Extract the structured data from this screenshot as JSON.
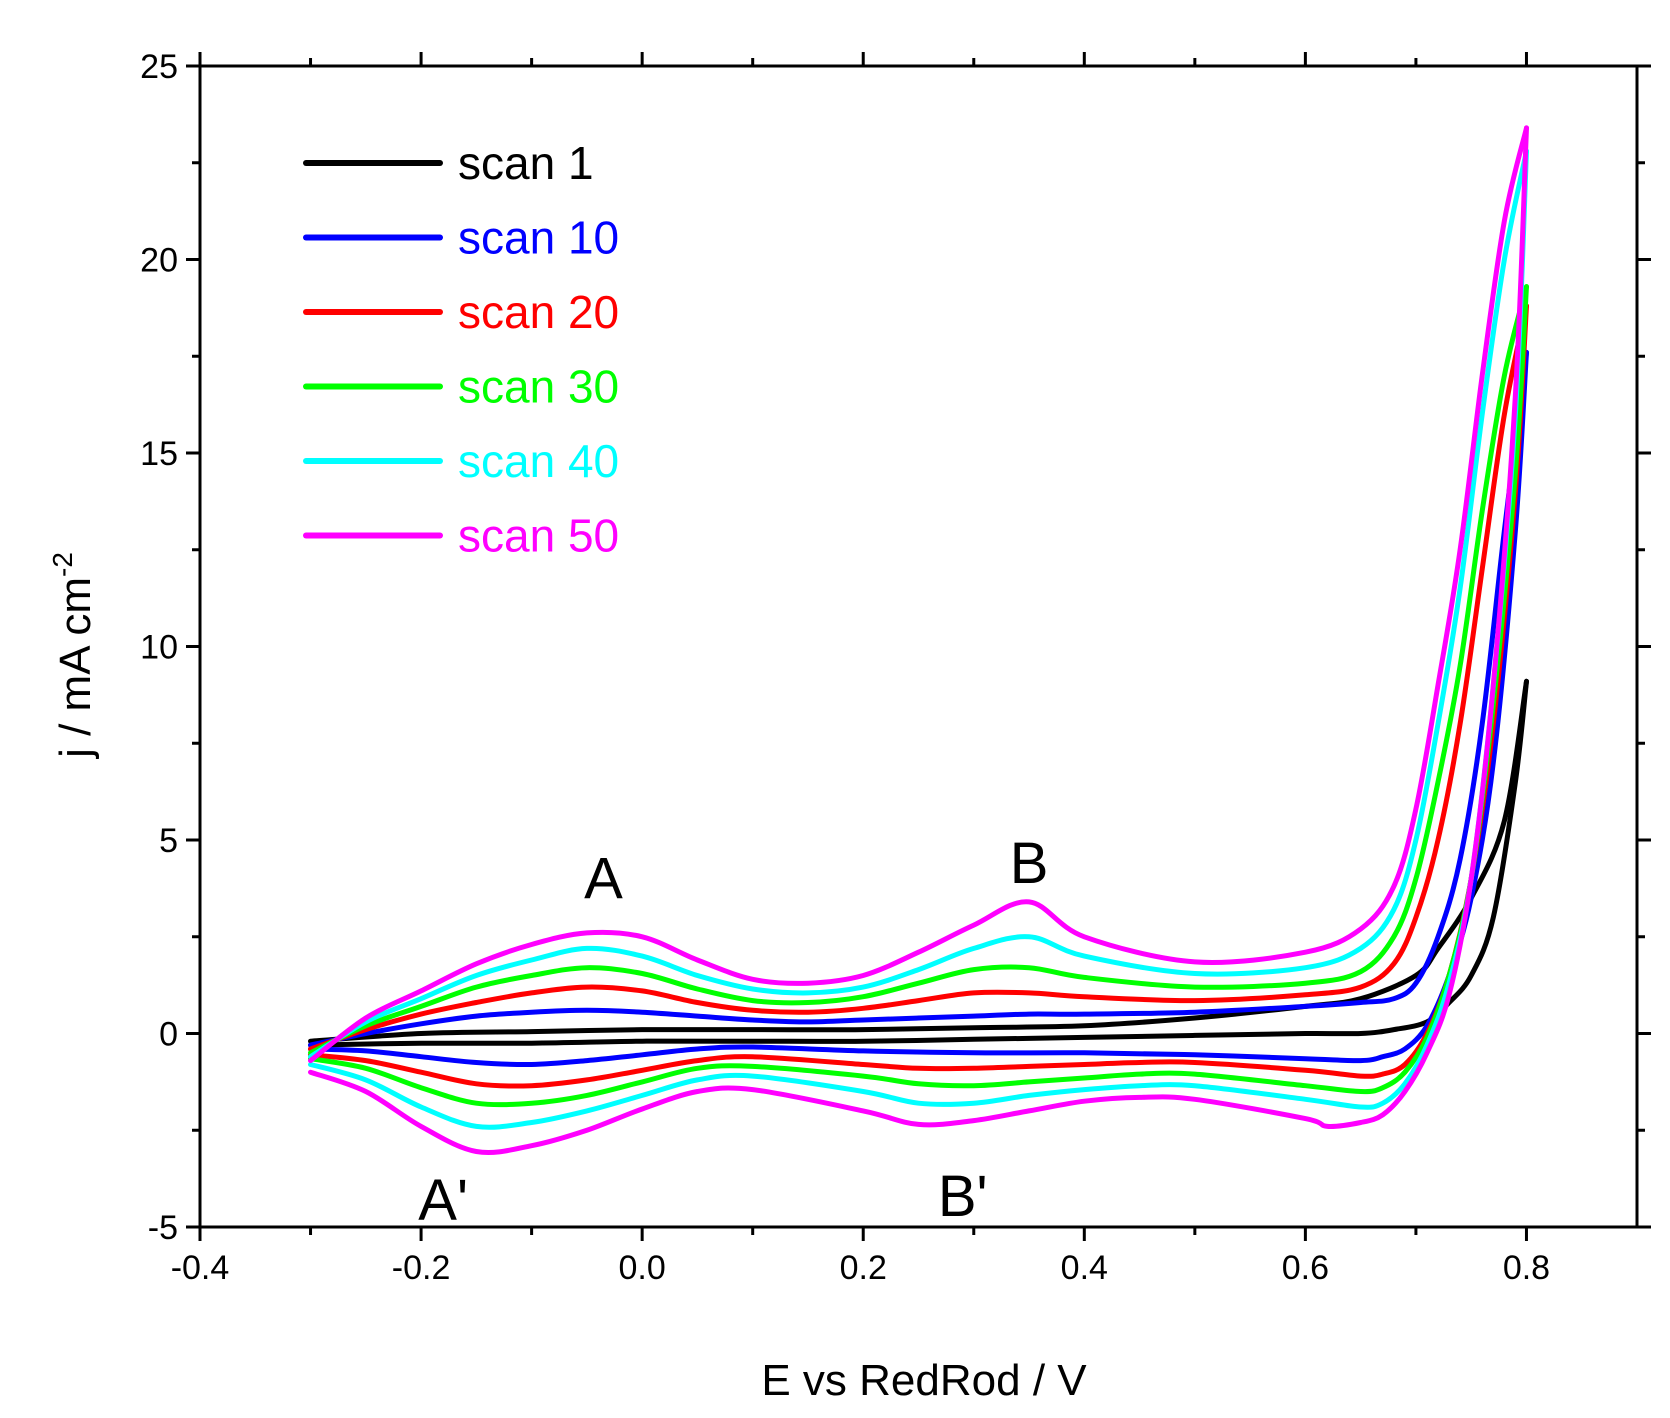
{
  "chart_data": {
    "type": "line",
    "title": "",
    "xlabel": "E vs RedRod / V",
    "ylabel_main": "j / mA cm",
    "ylabel_sup": "-2",
    "xlim": [
      -0.4,
      0.9
    ],
    "ylim": [
      -5,
      25
    ],
    "xticks": [
      -0.4,
      -0.2,
      0.0,
      0.2,
      0.4,
      0.6,
      0.8
    ],
    "xtick_labels": [
      "-0.4",
      "-0.2",
      "0.0",
      "0.2",
      "0.4",
      "0.6",
      "0.8"
    ],
    "yticks": [
      -5,
      0,
      5,
      10,
      15,
      20,
      25
    ],
    "ytick_labels": [
      "-5",
      "0",
      "5",
      "10",
      "15",
      "20",
      "25"
    ],
    "legend_position": "top-left",
    "annotations": [
      {
        "text": "A",
        "x": -0.035,
        "y": 4.0
      },
      {
        "text": "B",
        "x": 0.35,
        "y": 4.4
      },
      {
        "text": "A'",
        "x": -0.18,
        "y": -4.3
      },
      {
        "text": "B'",
        "x": 0.29,
        "y": -4.2
      }
    ],
    "series": [
      {
        "name": "scan 1",
        "color": "#000000",
        "forward": [
          [
            -0.3,
            -0.2
          ],
          [
            -0.2,
            0.0
          ],
          [
            -0.1,
            0.05
          ],
          [
            0.0,
            0.1
          ],
          [
            0.1,
            0.1
          ],
          [
            0.2,
            0.1
          ],
          [
            0.3,
            0.15
          ],
          [
            0.4,
            0.2
          ],
          [
            0.5,
            0.4
          ],
          [
            0.6,
            0.7
          ],
          [
            0.65,
            0.9
          ],
          [
            0.7,
            1.5
          ],
          [
            0.72,
            2.2
          ],
          [
            0.75,
            3.5
          ],
          [
            0.78,
            5.5
          ],
          [
            0.8,
            9.1
          ]
        ],
        "reverse": [
          [
            0.8,
            9.1
          ],
          [
            0.79,
            6.5
          ],
          [
            0.77,
            3.0
          ],
          [
            0.75,
            1.5
          ],
          [
            0.73,
            0.8
          ],
          [
            0.71,
            0.3
          ],
          [
            0.68,
            0.1
          ],
          [
            0.65,
            0.0
          ],
          [
            0.6,
            0.0
          ],
          [
            0.5,
            -0.05
          ],
          [
            0.4,
            -0.1
          ],
          [
            0.3,
            -0.15
          ],
          [
            0.2,
            -0.2
          ],
          [
            0.1,
            -0.2
          ],
          [
            0.0,
            -0.2
          ],
          [
            -0.1,
            -0.25
          ],
          [
            -0.2,
            -0.25
          ],
          [
            -0.3,
            -0.3
          ]
        ]
      },
      {
        "name": "scan 10",
        "color": "#0000ff",
        "forward": [
          [
            -0.3,
            -0.3
          ],
          [
            -0.25,
            0.0
          ],
          [
            -0.2,
            0.25
          ],
          [
            -0.15,
            0.45
          ],
          [
            -0.1,
            0.55
          ],
          [
            -0.05,
            0.6
          ],
          [
            0.0,
            0.55
          ],
          [
            0.05,
            0.45
          ],
          [
            0.1,
            0.35
          ],
          [
            0.15,
            0.3
          ],
          [
            0.2,
            0.35
          ],
          [
            0.25,
            0.4
          ],
          [
            0.3,
            0.45
          ],
          [
            0.35,
            0.5
          ],
          [
            0.4,
            0.5
          ],
          [
            0.5,
            0.55
          ],
          [
            0.6,
            0.7
          ],
          [
            0.65,
            0.8
          ],
          [
            0.68,
            0.9
          ],
          [
            0.7,
            1.3
          ],
          [
            0.72,
            2.5
          ],
          [
            0.74,
            4.5
          ],
          [
            0.76,
            8.0
          ],
          [
            0.78,
            13.0
          ],
          [
            0.8,
            17.6
          ]
        ],
        "reverse": [
          [
            0.8,
            17.6
          ],
          [
            0.79,
            13.0
          ],
          [
            0.77,
            7.0
          ],
          [
            0.75,
            3.5
          ],
          [
            0.73,
            1.5
          ],
          [
            0.71,
            0.2
          ],
          [
            0.69,
            -0.4
          ],
          [
            0.67,
            -0.6
          ],
          [
            0.65,
            -0.7
          ],
          [
            0.6,
            -0.65
          ],
          [
            0.5,
            -0.55
          ],
          [
            0.4,
            -0.5
          ],
          [
            0.3,
            -0.5
          ],
          [
            0.2,
            -0.45
          ],
          [
            0.1,
            -0.35
          ],
          [
            0.05,
            -0.4
          ],
          [
            0.0,
            -0.55
          ],
          [
            -0.05,
            -0.7
          ],
          [
            -0.1,
            -0.8
          ],
          [
            -0.15,
            -0.75
          ],
          [
            -0.2,
            -0.6
          ],
          [
            -0.25,
            -0.45
          ],
          [
            -0.3,
            -0.4
          ]
        ]
      },
      {
        "name": "scan 20",
        "color": "#ff0000",
        "forward": [
          [
            -0.3,
            -0.4
          ],
          [
            -0.25,
            0.1
          ],
          [
            -0.2,
            0.5
          ],
          [
            -0.15,
            0.8
          ],
          [
            -0.1,
            1.05
          ],
          [
            -0.05,
            1.2
          ],
          [
            0.0,
            1.1
          ],
          [
            0.05,
            0.8
          ],
          [
            0.1,
            0.6
          ],
          [
            0.15,
            0.55
          ],
          [
            0.2,
            0.65
          ],
          [
            0.25,
            0.85
          ],
          [
            0.3,
            1.05
          ],
          [
            0.35,
            1.05
          ],
          [
            0.4,
            0.95
          ],
          [
            0.5,
            0.85
          ],
          [
            0.6,
            1.0
          ],
          [
            0.65,
            1.2
          ],
          [
            0.68,
            1.8
          ],
          [
            0.7,
            3.0
          ],
          [
            0.72,
            5.0
          ],
          [
            0.74,
            8.0
          ],
          [
            0.76,
            12.0
          ],
          [
            0.78,
            16.0
          ],
          [
            0.8,
            18.8
          ]
        ],
        "reverse": [
          [
            0.8,
            18.8
          ],
          [
            0.79,
            14.0
          ],
          [
            0.77,
            8.0
          ],
          [
            0.75,
            4.0
          ],
          [
            0.73,
            1.5
          ],
          [
            0.71,
            0.0
          ],
          [
            0.69,
            -0.8
          ],
          [
            0.67,
            -1.05
          ],
          [
            0.65,
            -1.1
          ],
          [
            0.6,
            -0.95
          ],
          [
            0.5,
            -0.75
          ],
          [
            0.45,
            -0.75
          ],
          [
            0.4,
            -0.8
          ],
          [
            0.35,
            -0.85
          ],
          [
            0.3,
            -0.9
          ],
          [
            0.25,
            -0.9
          ],
          [
            0.2,
            -0.8
          ],
          [
            0.1,
            -0.6
          ],
          [
            0.05,
            -0.7
          ],
          [
            0.0,
            -0.95
          ],
          [
            -0.05,
            -1.2
          ],
          [
            -0.1,
            -1.35
          ],
          [
            -0.15,
            -1.3
          ],
          [
            -0.2,
            -1.0
          ],
          [
            -0.25,
            -0.7
          ],
          [
            -0.3,
            -0.55
          ]
        ]
      },
      {
        "name": "scan 30",
        "color": "#00ff00",
        "forward": [
          [
            -0.3,
            -0.5
          ],
          [
            -0.25,
            0.2
          ],
          [
            -0.2,
            0.7
          ],
          [
            -0.15,
            1.2
          ],
          [
            -0.1,
            1.5
          ],
          [
            -0.05,
            1.7
          ],
          [
            0.0,
            1.55
          ],
          [
            0.05,
            1.15
          ],
          [
            0.1,
            0.85
          ],
          [
            0.15,
            0.8
          ],
          [
            0.2,
            0.95
          ],
          [
            0.25,
            1.3
          ],
          [
            0.3,
            1.65
          ],
          [
            0.35,
            1.7
          ],
          [
            0.4,
            1.45
          ],
          [
            0.5,
            1.2
          ],
          [
            0.6,
            1.3
          ],
          [
            0.65,
            1.6
          ],
          [
            0.68,
            2.5
          ],
          [
            0.7,
            4.0
          ],
          [
            0.72,
            6.5
          ],
          [
            0.74,
            9.5
          ],
          [
            0.76,
            13.5
          ],
          [
            0.78,
            17.0
          ],
          [
            0.8,
            19.3
          ]
        ],
        "reverse": [
          [
            0.8,
            19.3
          ],
          [
            0.79,
            14.5
          ],
          [
            0.77,
            8.5
          ],
          [
            0.75,
            4.0
          ],
          [
            0.73,
            1.5
          ],
          [
            0.71,
            -0.1
          ],
          [
            0.69,
            -1.0
          ],
          [
            0.67,
            -1.4
          ],
          [
            0.65,
            -1.5
          ],
          [
            0.6,
            -1.35
          ],
          [
            0.5,
            -1.05
          ],
          [
            0.45,
            -1.05
          ],
          [
            0.4,
            -1.15
          ],
          [
            0.35,
            -1.25
          ],
          [
            0.3,
            -1.35
          ],
          [
            0.25,
            -1.3
          ],
          [
            0.2,
            -1.1
          ],
          [
            0.1,
            -0.85
          ],
          [
            0.05,
            -0.9
          ],
          [
            0.0,
            -1.25
          ],
          [
            -0.05,
            -1.6
          ],
          [
            -0.1,
            -1.8
          ],
          [
            -0.15,
            -1.8
          ],
          [
            -0.2,
            -1.4
          ],
          [
            -0.25,
            -0.9
          ],
          [
            -0.3,
            -0.65
          ]
        ]
      },
      {
        "name": "scan 40",
        "color": "#00ffff",
        "forward": [
          [
            -0.3,
            -0.6
          ],
          [
            -0.25,
            0.3
          ],
          [
            -0.2,
            0.9
          ],
          [
            -0.15,
            1.5
          ],
          [
            -0.1,
            1.9
          ],
          [
            -0.05,
            2.2
          ],
          [
            0.0,
            2.0
          ],
          [
            0.05,
            1.5
          ],
          [
            0.1,
            1.15
          ],
          [
            0.15,
            1.05
          ],
          [
            0.2,
            1.2
          ],
          [
            0.25,
            1.65
          ],
          [
            0.3,
            2.2
          ],
          [
            0.35,
            2.5
          ],
          [
            0.4,
            2.0
          ],
          [
            0.5,
            1.55
          ],
          [
            0.6,
            1.7
          ],
          [
            0.65,
            2.2
          ],
          [
            0.68,
            3.2
          ],
          [
            0.7,
            5.0
          ],
          [
            0.72,
            8.0
          ],
          [
            0.74,
            11.5
          ],
          [
            0.76,
            16.0
          ],
          [
            0.78,
            20.0
          ],
          [
            0.8,
            22.8
          ]
        ],
        "reverse": [
          [
            0.8,
            22.8
          ],
          [
            0.79,
            16.0
          ],
          [
            0.77,
            9.0
          ],
          [
            0.75,
            4.0
          ],
          [
            0.73,
            1.3
          ],
          [
            0.71,
            -0.3
          ],
          [
            0.69,
            -1.3
          ],
          [
            0.67,
            -1.8
          ],
          [
            0.65,
            -1.9
          ],
          [
            0.6,
            -1.7
          ],
          [
            0.5,
            -1.35
          ],
          [
            0.45,
            -1.35
          ],
          [
            0.4,
            -1.45
          ],
          [
            0.35,
            -1.6
          ],
          [
            0.3,
            -1.8
          ],
          [
            0.25,
            -1.8
          ],
          [
            0.2,
            -1.5
          ],
          [
            0.1,
            -1.1
          ],
          [
            0.05,
            -1.2
          ],
          [
            0.0,
            -1.6
          ],
          [
            -0.05,
            -2.0
          ],
          [
            -0.1,
            -2.3
          ],
          [
            -0.15,
            -2.4
          ],
          [
            -0.2,
            -1.9
          ],
          [
            -0.25,
            -1.2
          ],
          [
            -0.3,
            -0.8
          ]
        ]
      },
      {
        "name": "scan 50",
        "color": "#ff00ff",
        "forward": [
          [
            -0.3,
            -0.7
          ],
          [
            -0.25,
            0.4
          ],
          [
            -0.2,
            1.1
          ],
          [
            -0.15,
            1.8
          ],
          [
            -0.1,
            2.3
          ],
          [
            -0.05,
            2.6
          ],
          [
            0.0,
            2.5
          ],
          [
            0.05,
            1.9
          ],
          [
            0.1,
            1.4
          ],
          [
            0.15,
            1.3
          ],
          [
            0.2,
            1.5
          ],
          [
            0.25,
            2.1
          ],
          [
            0.3,
            2.8
          ],
          [
            0.35,
            3.4
          ],
          [
            0.4,
            2.5
          ],
          [
            0.5,
            1.85
          ],
          [
            0.6,
            2.1
          ],
          [
            0.65,
            2.7
          ],
          [
            0.68,
            3.8
          ],
          [
            0.7,
            5.8
          ],
          [
            0.72,
            9.0
          ],
          [
            0.74,
            12.5
          ],
          [
            0.76,
            17.0
          ],
          [
            0.78,
            21.0
          ],
          [
            0.8,
            23.4
          ]
        ],
        "reverse": [
          [
            0.8,
            23.4
          ],
          [
            0.79,
            16.5
          ],
          [
            0.77,
            9.0
          ],
          [
            0.75,
            4.0
          ],
          [
            0.73,
            1.0
          ],
          [
            0.71,
            -0.5
          ],
          [
            0.69,
            -1.5
          ],
          [
            0.67,
            -2.1
          ],
          [
            0.65,
            -2.3
          ],
          [
            0.62,
            -2.4
          ],
          [
            0.6,
            -2.2
          ],
          [
            0.5,
            -1.7
          ],
          [
            0.45,
            -1.65
          ],
          [
            0.4,
            -1.75
          ],
          [
            0.35,
            -2.0
          ],
          [
            0.3,
            -2.25
          ],
          [
            0.25,
            -2.35
          ],
          [
            0.2,
            -2.0
          ],
          [
            0.1,
            -1.45
          ],
          [
            0.05,
            -1.5
          ],
          [
            0.0,
            -1.95
          ],
          [
            -0.05,
            -2.5
          ],
          [
            -0.1,
            -2.9
          ],
          [
            -0.15,
            -3.05
          ],
          [
            -0.2,
            -2.4
          ],
          [
            -0.25,
            -1.5
          ],
          [
            -0.3,
            -1.0
          ]
        ]
      }
    ]
  }
}
